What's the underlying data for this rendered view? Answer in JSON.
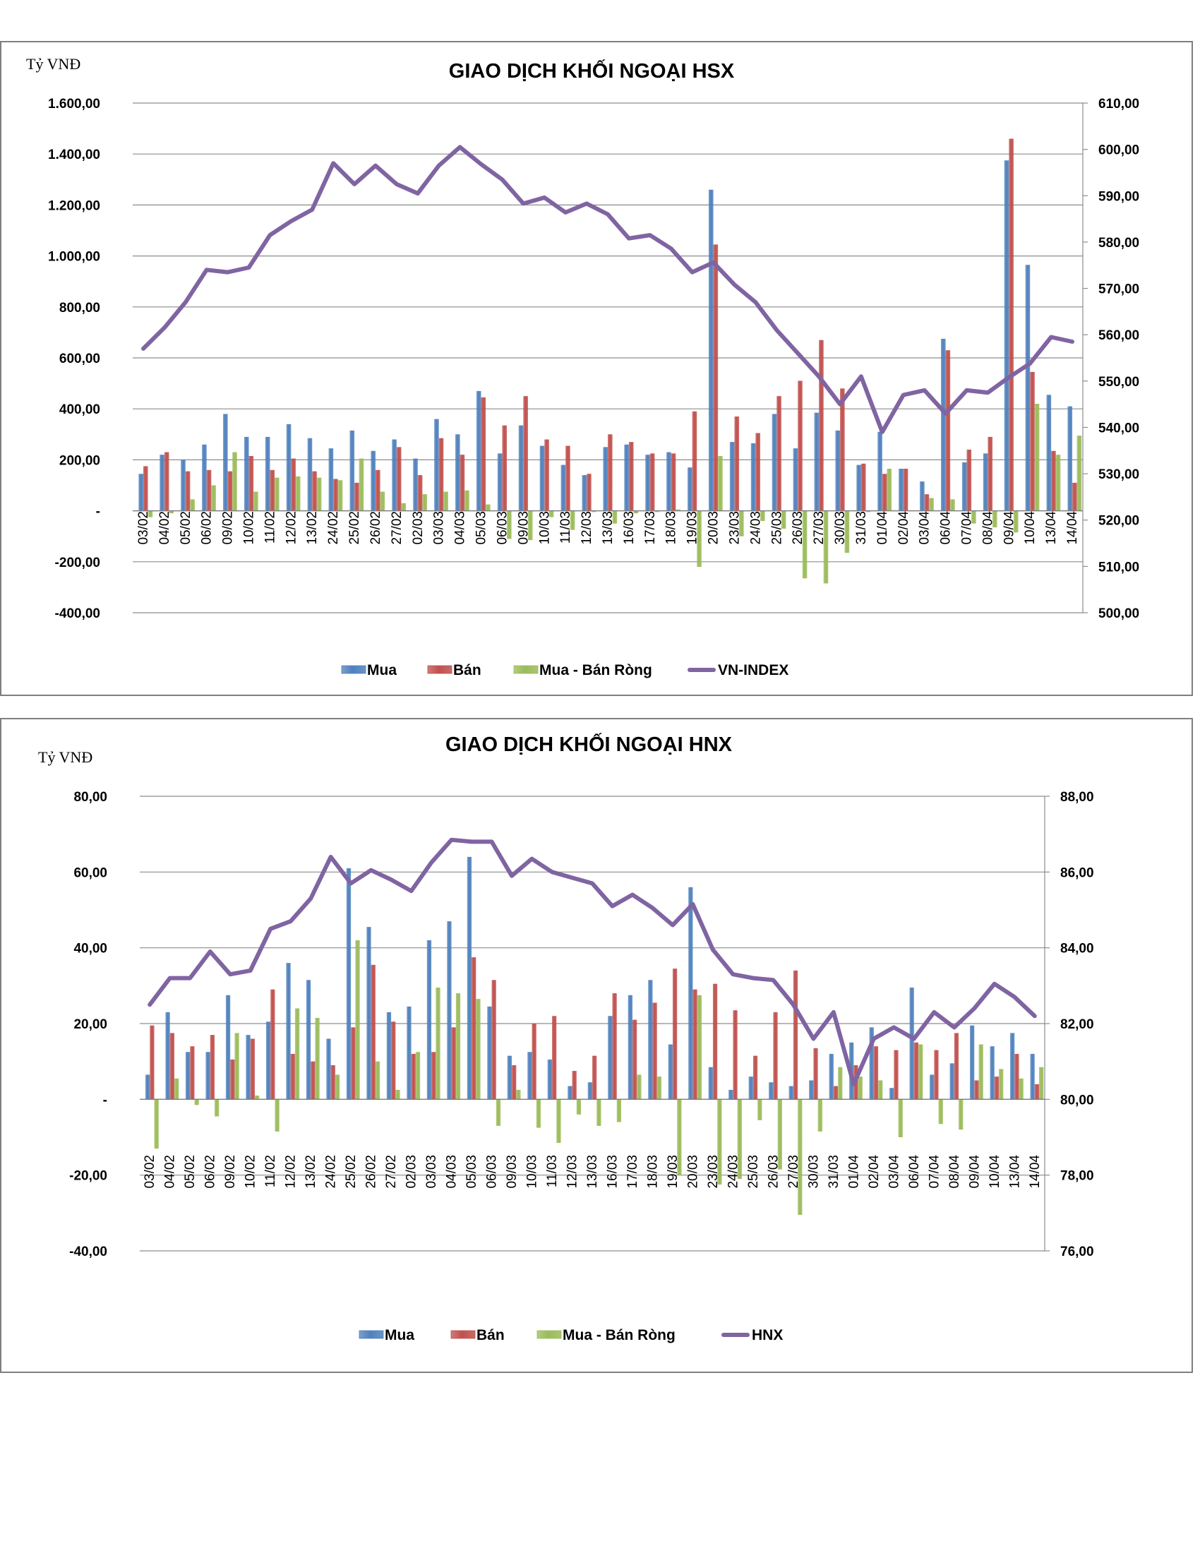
{
  "chart_data": [
    {
      "type": "bar",
      "title": "GIAO DỊCH KHỐI NGOẠI HSX",
      "unit_label": "Tỷ VNĐ",
      "left_axis": {
        "ylim": [
          -400,
          1600
        ],
        "step": 200,
        "tick_labels": [
          "-400,00",
          "-200,00",
          "-",
          "200,00",
          "400,00",
          "600,00",
          "800,00",
          "1.000,00",
          "1.200,00",
          "1.400,00",
          "1.600,00"
        ]
      },
      "right_axis": {
        "ylim": [
          500,
          610
        ],
        "step": 10,
        "tick_labels": [
          "500,00",
          "510,00",
          "520,00",
          "530,00",
          "540,00",
          "550,00",
          "560,00",
          "570,00",
          "580,00",
          "590,00",
          "600,00",
          "610,00"
        ]
      },
      "grid": true,
      "legend_position": "bottom",
      "colors": {
        "Mua": "#4f81bd",
        "Bán": "#c0504d",
        "Mua - Bán Ròng": "#9bbb59",
        "line": "#8064a2"
      },
      "categories": [
        "03/02",
        "04/02",
        "05/02",
        "06/02",
        "09/02",
        "10/02",
        "11/02",
        "12/02",
        "13/02",
        "24/02",
        "25/02",
        "26/02",
        "27/02",
        "02/03",
        "03/03",
        "04/03",
        "05/03",
        "06/03",
        "09/03",
        "10/03",
        "11/03",
        "12/03",
        "13/03",
        "16/03",
        "17/03",
        "18/03",
        "19/03",
        "20/03",
        "23/03",
        "24/03",
        "25/03",
        "26/03",
        "27/03",
        "30/03",
        "31/03",
        "01/04",
        "02/04",
        "03/04",
        "06/04",
        "07/04",
        "08/04",
        "09/04",
        "10/04",
        "13/04",
        "14/04"
      ],
      "series": [
        {
          "name": "Mua",
          "type": "bar",
          "values": [
            145,
            220,
            200,
            260,
            380,
            290,
            290,
            340,
            285,
            245,
            315,
            235,
            280,
            205,
            360,
            300,
            470,
            225,
            335,
            255,
            180,
            140,
            250,
            260,
            220,
            230,
            170,
            1260,
            270,
            265,
            380,
            245,
            385,
            315,
            180,
            310,
            165,
            115,
            675,
            190,
            225,
            1375,
            965,
            455,
            410
          ]
        },
        {
          "name": "Bán",
          "type": "bar",
          "values": [
            175,
            230,
            155,
            160,
            155,
            215,
            160,
            205,
            155,
            125,
            110,
            160,
            250,
            140,
            285,
            220,
            445,
            335,
            450,
            280,
            255,
            145,
            300,
            270,
            225,
            225,
            390,
            1045,
            370,
            305,
            450,
            510,
            670,
            480,
            185,
            145,
            165,
            65,
            630,
            240,
            290,
            1460,
            545,
            235,
            110
          ]
        },
        {
          "name": "Mua - Bán Ròng",
          "type": "bar",
          "values": [
            -25,
            -10,
            45,
            100,
            230,
            75,
            130,
            135,
            130,
            120,
            205,
            75,
            30,
            65,
            75,
            80,
            25,
            -110,
            -115,
            -25,
            -75,
            -5,
            -50,
            -10,
            -5,
            5,
            -220,
            215,
            -100,
            -40,
            -70,
            -265,
            -285,
            -165,
            -5,
            165,
            0,
            50,
            45,
            -50,
            -65,
            -85,
            420,
            220,
            295
          ]
        },
        {
          "name": "VN-INDEX",
          "type": "line",
          "axis": "right",
          "values": [
            557,
            561.5,
            567,
            574,
            573.5,
            574.5,
            581.5,
            584.5,
            587,
            597,
            592.5,
            596.5,
            592.5,
            590.5,
            596.5,
            600.5,
            596.8,
            593.5,
            588.3,
            589.6,
            586.4,
            588.3,
            586,
            580.8,
            581.5,
            578.6,
            573.5,
            575.6,
            570.8,
            567,
            561,
            556,
            551,
            545,
            551,
            539,
            547,
            548,
            543,
            548,
            547.5,
            550.8,
            553.8,
            559.5,
            558.5
          ]
        }
      ]
    },
    {
      "type": "bar",
      "title": "GIAO DỊCH KHỐI NGOẠI HNX",
      "unit_label": "Tỷ VNĐ",
      "left_axis": {
        "ylim": [
          -40,
          80
        ],
        "step": 20,
        "tick_labels": [
          "-40,00",
          "-20,00",
          "-",
          "20,00",
          "40,00",
          "60,00",
          "80,00"
        ]
      },
      "right_axis": {
        "ylim": [
          76,
          88
        ],
        "step": 2,
        "tick_labels": [
          "76,00",
          "78,00",
          "80,00",
          "82,00",
          "84,00",
          "86,00",
          "88,00"
        ]
      },
      "grid": true,
      "legend_position": "bottom",
      "colors": {
        "Mua": "#4f81bd",
        "Bán": "#c0504d",
        "Mua - Bán Ròng": "#9bbb59",
        "line": "#8064a2"
      },
      "categories": [
        "03/02",
        "04/02",
        "05/02",
        "06/02",
        "09/02",
        "10/02",
        "11/02",
        "12/02",
        "13/02",
        "24/02",
        "25/02",
        "26/02",
        "27/02",
        "02/03",
        "03/03",
        "04/03",
        "05/03",
        "06/03",
        "09/03",
        "10/03",
        "11/03",
        "12/03",
        "13/03",
        "16/03",
        "17/03",
        "18/03",
        "19/03",
        "20/03",
        "23/03",
        "24/03",
        "25/03",
        "26/03",
        "27/03",
        "30/03",
        "31/03",
        "01/04",
        "02/04",
        "03/04",
        "06/04",
        "07/04",
        "08/04",
        "09/04",
        "10/04",
        "13/04",
        "14/04"
      ],
      "series": [
        {
          "name": "Mua",
          "type": "bar",
          "values": [
            6.5,
            23,
            12.5,
            12.5,
            27.5,
            17,
            20.5,
            36,
            31.5,
            16,
            61,
            45.5,
            23,
            24.5,
            42,
            47,
            64,
            24.5,
            11.5,
            12.5,
            10.5,
            3.5,
            4.5,
            22,
            27.5,
            31.5,
            14.5,
            56,
            8.5,
            2.5,
            6,
            4.5,
            3.5,
            5,
            12,
            15,
            19,
            3,
            29.5,
            6.5,
            9.5,
            19.5,
            14,
            17.5,
            12
          ]
        },
        {
          "name": "Bán",
          "type": "bar",
          "values": [
            19.5,
            17.5,
            14,
            17,
            10.5,
            16,
            29,
            12,
            10,
            9,
            19,
            35.5,
            20.5,
            12,
            12.5,
            19,
            37.5,
            31.5,
            9,
            20,
            22,
            7.5,
            11.5,
            28,
            21,
            25.5,
            34.5,
            29,
            30.5,
            23.5,
            11.5,
            23,
            34,
            13.5,
            3.5,
            9,
            14,
            13,
            15,
            13,
            17.5,
            5,
            6,
            12,
            4
          ]
        },
        {
          "name": "Mua - Bán Ròng",
          "type": "bar",
          "values": [
            -13,
            5.5,
            -1.5,
            -4.5,
            17.5,
            1,
            -8.5,
            24,
            21.5,
            6.5,
            42,
            10,
            2.5,
            12.5,
            29.5,
            28,
            26.5,
            -7,
            2.5,
            -7.5,
            -11.5,
            -4,
            -7,
            -6,
            6.5,
            6,
            -20,
            27.5,
            -22.5,
            -21,
            -5.5,
            -18.5,
            -30.5,
            -8.5,
            8.5,
            6,
            5,
            -10,
            14.5,
            -6.5,
            -8,
            14.5,
            8,
            5.5,
            8.5
          ]
        },
        {
          "name": "HNX",
          "type": "line",
          "axis": "right",
          "values": [
            82.5,
            83.2,
            83.2,
            83.9,
            83.3,
            83.4,
            84.5,
            84.7,
            85.3,
            86.4,
            85.7,
            86.05,
            85.8,
            85.5,
            86.25,
            86.85,
            86.8,
            86.8,
            85.9,
            86.35,
            86,
            85.85,
            85.7,
            85.1,
            85.4,
            85.05,
            84.6,
            85.15,
            83.95,
            83.3,
            83.2,
            83.15,
            82.5,
            81.6,
            82.3,
            80.4,
            81.6,
            81.9,
            81.6,
            82.3,
            81.9,
            82.4,
            83.05,
            82.7,
            82.2
          ]
        }
      ]
    }
  ]
}
